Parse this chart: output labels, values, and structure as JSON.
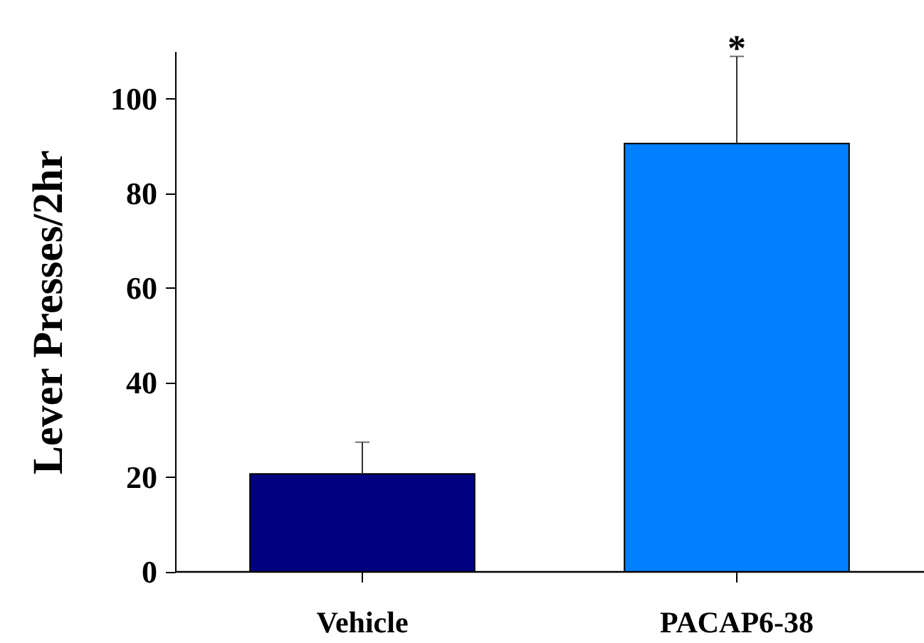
{
  "chart_data": {
    "type": "bar",
    "ylabel": "Lever Presses/2hr",
    "categories": [
      "Vehicle",
      "PACAP6-38"
    ],
    "values": [
      20.7,
      90.5
    ],
    "colors": [
      "#000080",
      "#0080ff"
    ],
    "errors": [
      [
        20.7,
        27.4
      ],
      [
        90.5,
        108.9
      ]
    ],
    "ylim": [
      0,
      110
    ],
    "yticks": [
      0,
      20,
      40,
      60,
      80,
      100
    ],
    "annotations": [
      {
        "text": "*",
        "x": "PACAP6-38",
        "y": 108.9
      }
    ]
  }
}
